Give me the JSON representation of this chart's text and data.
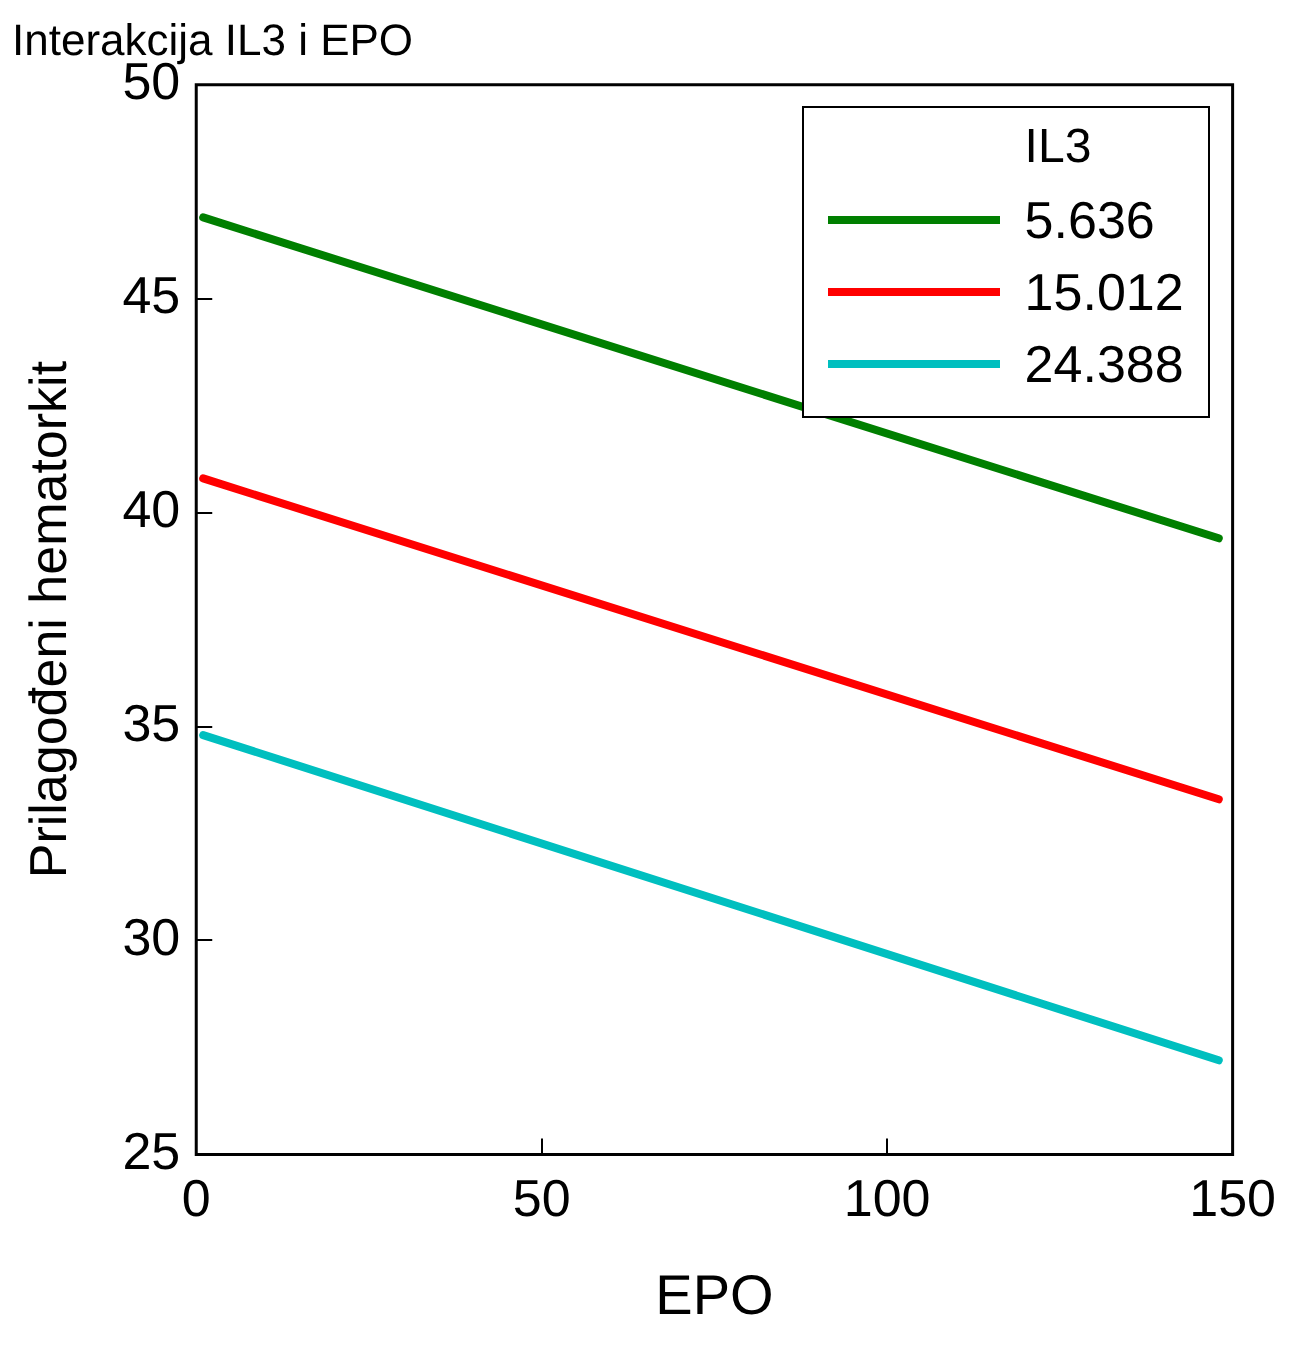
{
  "chart_data": {
    "type": "line",
    "title": "Interakcija IL3 i EPO",
    "xlabel": "EPO",
    "ylabel": "Prilagođeni hematorkit",
    "legend_title": "IL3",
    "legend": "top right",
    "grid": false,
    "marker": "none",
    "line_style": "solid",
    "xlim": [
      0,
      150
    ],
    "xticks": [
      0,
      50,
      100,
      150
    ],
    "ylim": [
      25,
      50
    ],
    "yticks": [
      25,
      30,
      35,
      40,
      45,
      50
    ],
    "x": [
      1,
      148
    ],
    "series": [
      {
        "name": "5.636",
        "color": "#007f00",
        "values": [
          46.9,
          39.4
        ]
      },
      {
        "name": "15.012",
        "color": "#ff0000",
        "values": [
          40.8,
          33.3
        ]
      },
      {
        "name": "24.388",
        "color": "#00bfbf",
        "values": [
          34.8,
          27.2
        ]
      }
    ]
  }
}
